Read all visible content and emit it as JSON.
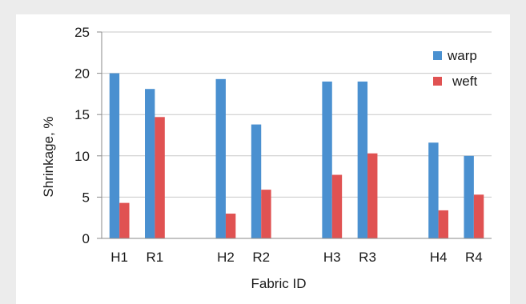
{
  "chart_data": {
    "type": "bar",
    "title": "",
    "xlabel": "Fabric ID",
    "ylabel": "Shrinkage, %",
    "ylim": [
      0,
      25
    ],
    "yticks": [
      "0",
      "5",
      "10",
      "15",
      "20",
      "25"
    ],
    "grid": true,
    "legend_position": "top-right",
    "categories": [
      "H1",
      "R1",
      "H2",
      "R2",
      "H3",
      "R3",
      "H4",
      "R4"
    ],
    "groups": [
      [
        "H1",
        "R1"
      ],
      [
        "H2",
        "R2"
      ],
      [
        "H3",
        "R3"
      ],
      [
        "H4",
        "R4"
      ]
    ],
    "series": [
      {
        "name": "warp",
        "color": "#4a90d0",
        "values": [
          20.0,
          18.1,
          19.3,
          13.8,
          19.0,
          19.0,
          11.6,
          10.0
        ]
      },
      {
        "name": "weft",
        "color": "#e05252",
        "values": [
          4.3,
          14.7,
          3.0,
          5.9,
          7.7,
          10.3,
          3.4,
          5.3
        ]
      }
    ]
  }
}
